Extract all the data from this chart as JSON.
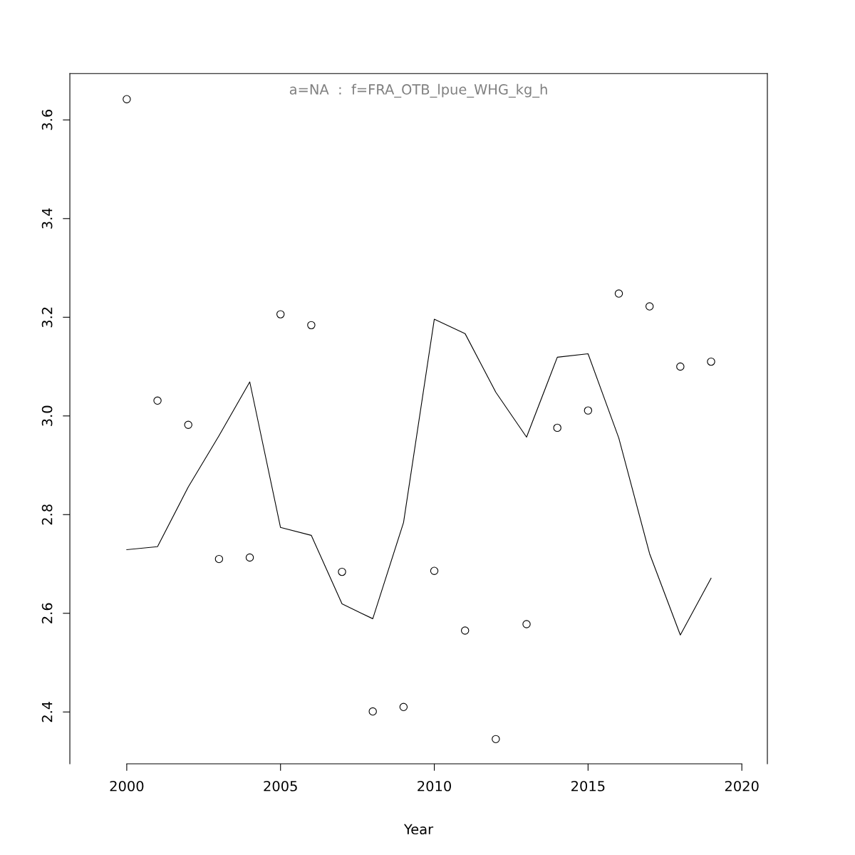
{
  "chart_data": {
    "type": "scatter",
    "title": "a=NA  :  f=FRA_OTB_lpue_WHG_kg_h",
    "xlabel": "Year",
    "x": [
      2000,
      2001,
      2002,
      2003,
      2004,
      2005,
      2006,
      2007,
      2008,
      2009,
      2010,
      2011,
      2012,
      2013,
      2014,
      2015,
      2016,
      2017,
      2018,
      2019
    ],
    "series": [
      {
        "color": "#000000",
        "marker": "circle",
        "values": [
          3.642,
          3.031,
          2.982,
          2.71,
          2.713,
          3.206,
          3.184,
          2.684,
          2.401,
          2.41,
          2.686,
          2.565,
          2.345,
          2.578,
          2.976,
          3.011,
          3.248,
          3.222,
          3.1,
          3.11
        ]
      },
      {
        "type": "line",
        "color": "#000000",
        "marker": "none",
        "line_style": "solid",
        "values": [
          2.729,
          2.735,
          2.856,
          2.96,
          3.069,
          2.774,
          2.758,
          2.619,
          2.589,
          2.784,
          3.196,
          3.167,
          3.048,
          2.957,
          3.119,
          3.126,
          2.955,
          2.721,
          2.556,
          2.671
        ]
      }
    ],
    "xlim": [
      1998.15,
      2020.83
    ],
    "ylim": [
      2.295,
      3.694
    ],
    "xticks": [
      2000,
      2005,
      2010,
      2015,
      2020
    ],
    "yticks": [
      {
        "value": 2.4,
        "label": "2.4"
      },
      {
        "value": 2.6,
        "label": "2.6"
      },
      {
        "value": 2.8,
        "label": "2.8"
      },
      {
        "value": 3.0,
        "label": "3.0"
      },
      {
        "value": 3.2,
        "label": "3.2"
      },
      {
        "value": 3.4,
        "label": "3.4"
      },
      {
        "value": 3.6,
        "label": "3.6"
      }
    ],
    "grid": false,
    "legend": false
  }
}
